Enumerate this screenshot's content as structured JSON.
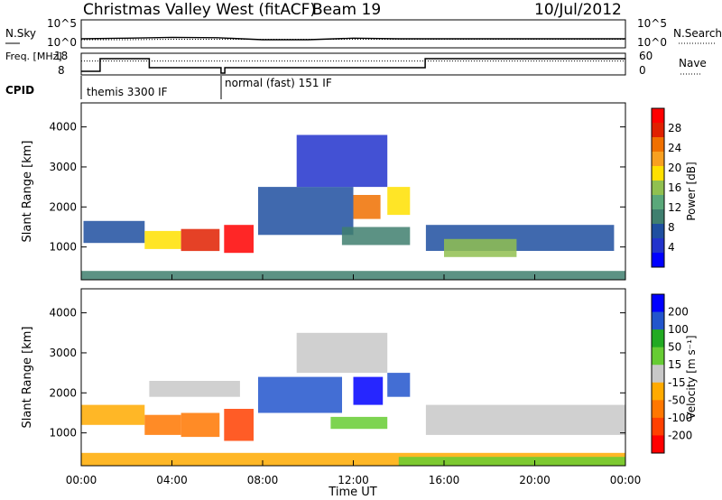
{
  "header": {
    "station": "Christmas Valley West (fitACF)",
    "beam": "Beam 19",
    "date": "10/Jul/2012"
  },
  "chart_data": [
    {
      "type": "line",
      "panel": "noise",
      "left_label": "N.Sky",
      "right_label": "N.Search",
      "tick_labels_left": [
        "10^5",
        "10^0"
      ],
      "tick_labels_right": [
        "10^5",
        "10^0"
      ],
      "ylim": [
        1,
        100000
      ],
      "log_scale": true,
      "x": [
        "00:00",
        "02:00",
        "04:00",
        "06:00",
        "08:00",
        "10:00",
        "12:00",
        "14:00",
        "16:00",
        "18:00",
        "20:00",
        "22:00",
        "24:00"
      ],
      "series": [
        {
          "name": "N.Sky",
          "values": [
            30,
            40,
            60,
            50,
            20,
            20,
            40,
            30,
            30,
            30,
            30,
            30,
            30
          ]
        },
        {
          "name": "N.Search",
          "values": [
            20,
            20,
            25,
            25,
            25,
            25,
            25,
            25,
            25,
            25,
            25,
            25,
            25
          ]
        }
      ]
    },
    {
      "type": "line",
      "panel": "frequency",
      "left_label": "Freq. [MHz]",
      "right_label": "Nave",
      "ylim_left": [
        8,
        18
      ],
      "ylim_right": [
        0,
        60
      ],
      "tick_labels_left": [
        "18",
        "8"
      ],
      "tick_labels_right": [
        "60",
        "0"
      ],
      "steps": [
        {
          "from": "00:00",
          "to": "00:50",
          "freq": 9
        },
        {
          "from": "00:50",
          "to": "03:00",
          "freq": 16
        },
        {
          "from": "03:00",
          "to": "06:10",
          "freq": 11
        },
        {
          "from": "06:10",
          "to": "06:20",
          "freq": 8
        },
        {
          "from": "06:20",
          "to": "15:10",
          "freq": 11
        },
        {
          "from": "15:10",
          "to": "24:00",
          "freq": 16
        }
      ],
      "nave_level": 40
    },
    {
      "type": "table",
      "panel": "cpid",
      "label": "CPID",
      "modes": [
        {
          "from": "00:00",
          "to": "06:10",
          "name": "themis 3300 IF"
        },
        {
          "from": "06:10",
          "to": "24:00",
          "name": "normal (fast) 151 IF"
        }
      ]
    },
    {
      "type": "heatmap",
      "panel": "power",
      "ylabel": "Slant Range [km]",
      "yticks": [
        "4000",
        "3000",
        "2000",
        "1000"
      ],
      "ylim": [
        180,
        4600
      ],
      "colorbar": {
        "label": "Power [dB]",
        "ticks": [
          "28",
          "24",
          "20",
          "16",
          "12",
          "8",
          "4"
        ],
        "range": [
          0,
          30
        ],
        "colors": [
          "#0000ff",
          "#2233cc",
          "#1f4fa0",
          "#3f7f6f",
          "#5aa87a",
          "#90c050",
          "#ffe000",
          "#f8a020",
          "#f07000",
          "#e02000",
          "#ff0000"
        ]
      },
      "regions": [
        {
          "t0": 0.1,
          "t1": 2.8,
          "r0": 1100,
          "r1": 1650,
          "value": 8
        },
        {
          "t0": 2.8,
          "t1": 4.4,
          "r0": 950,
          "r1": 1400,
          "value": 18
        },
        {
          "t0": 4.4,
          "t1": 6.1,
          "r0": 900,
          "r1": 1450,
          "value": 26
        },
        {
          "t0": 6.3,
          "t1": 7.6,
          "r0": 850,
          "r1": 1550,
          "value": 28
        },
        {
          "t0": 7.8,
          "t1": 12.0,
          "r0": 1300,
          "r1": 2500,
          "value": 6
        },
        {
          "t0": 9.5,
          "t1": 13.5,
          "r0": 2500,
          "r1": 3800,
          "value": 5
        },
        {
          "t0": 12.0,
          "t1": 13.2,
          "r0": 1700,
          "r1": 2300,
          "value": 22
        },
        {
          "t0": 13.5,
          "t1": 14.5,
          "r0": 1800,
          "r1": 2500,
          "value": 18
        },
        {
          "t0": 11.5,
          "t1": 14.5,
          "r0": 1050,
          "r1": 1500,
          "value": 10
        },
        {
          "t0": 15.2,
          "t1": 23.5,
          "r0": 900,
          "r1": 1550,
          "value": 6
        },
        {
          "t0": 16.0,
          "t1": 19.2,
          "r0": 750,
          "r1": 1200,
          "value": 14
        },
        {
          "t0": 0.0,
          "t1": 24.0,
          "r0": 180,
          "r1": 400,
          "value": 9
        }
      ]
    },
    {
      "type": "heatmap",
      "panel": "velocity",
      "ylabel": "Slant Range [km]",
      "yticks": [
        "4000",
        "3000",
        "2000",
        "1000"
      ],
      "ylim": [
        180,
        4600
      ],
      "xlabel": "Time UT",
      "xticks": [
        "00:00",
        "04:00",
        "08:00",
        "12:00",
        "16:00",
        "20:00",
        "00:00"
      ],
      "colorbar": {
        "label": "Velocity [m s⁻¹]",
        "ticks": [
          "200",
          "100",
          "50",
          "15",
          "-15",
          "-50",
          "-100",
          "-200"
        ],
        "range": [
          -250,
          250
        ],
        "colors": [
          "#ff0000",
          "#ff4000",
          "#ff7700",
          "#ffaa00",
          "#c8c8c8",
          "#66cc33",
          "#22aa22",
          "#2255cc",
          "#0000ff"
        ]
      },
      "regions": [
        {
          "t0": 0.0,
          "t1": 2.8,
          "r0": 1200,
          "r1": 1700,
          "value": -60
        },
        {
          "t0": 2.8,
          "t1": 4.4,
          "r0": 950,
          "r1": 1450,
          "value": -120
        },
        {
          "t0": 4.4,
          "t1": 6.1,
          "r0": 900,
          "r1": 1500,
          "value": -100
        },
        {
          "t0": 6.3,
          "t1": 7.6,
          "r0": 800,
          "r1": 1600,
          "value": -180
        },
        {
          "t0": 3.0,
          "t1": 7.0,
          "r0": 1900,
          "r1": 2300,
          "value": 0
        },
        {
          "t0": 7.8,
          "t1": 11.5,
          "r0": 1500,
          "r1": 2400,
          "value": 150
        },
        {
          "t0": 9.5,
          "t1": 13.5,
          "r0": 2500,
          "r1": 3500,
          "value": 0
        },
        {
          "t0": 12.0,
          "t1": 13.3,
          "r0": 1700,
          "r1": 2400,
          "value": 200
        },
        {
          "t0": 13.5,
          "t1": 14.5,
          "r0": 1900,
          "r1": 2500,
          "value": 180
        },
        {
          "t0": 11.0,
          "t1": 13.5,
          "r0": 1100,
          "r1": 1400,
          "value": 70
        },
        {
          "t0": 15.2,
          "t1": 24.0,
          "r0": 950,
          "r1": 1700,
          "value": -5
        },
        {
          "t0": 0.0,
          "t1": 24.0,
          "r0": 180,
          "r1": 500,
          "value": -40
        },
        {
          "t0": 14.0,
          "t1": 24.0,
          "r0": 180,
          "r1": 400,
          "value": 60
        }
      ]
    }
  ]
}
